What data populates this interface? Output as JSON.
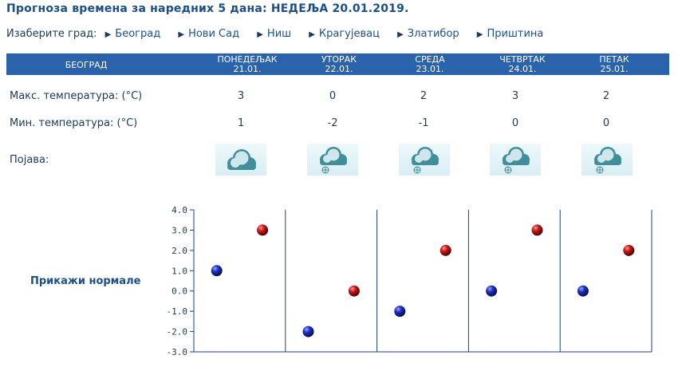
{
  "title": "Прогноза времена за наредних 5 дана: НЕДЕЉА  20.01.2019.",
  "city_select": {
    "label": "Изаберите град:",
    "cities": [
      "Београд",
      "Нови Сад",
      "Ниш",
      "Крагујевац",
      "Златибор",
      "Приштина"
    ]
  },
  "forecast": {
    "city": "БЕОГРАД",
    "days": [
      {
        "name": "ПОНЕДЕЉАК",
        "date": "21.01.",
        "max": "3",
        "min": "1",
        "icon": "cloud-icon"
      },
      {
        "name": "УТОРАК",
        "date": "22.01.",
        "max": "0",
        "min": "-2",
        "icon": "snow-cloud-icon"
      },
      {
        "name": "СРЕДА",
        "date": "23.01.",
        "max": "2",
        "min": "-1",
        "icon": "snow-cloud-icon"
      },
      {
        "name": "ЧЕТВРТАК",
        "date": "24.01.",
        "max": "3",
        "min": "0",
        "icon": "snow-cloud-icon"
      },
      {
        "name": "ПЕТАК",
        "date": "25.01.",
        "max": "2",
        "min": "0",
        "icon": "snow-cloud-icon"
      }
    ],
    "max_label": "Макс. температура: (°C)",
    "min_label": "Мин. температура: (°C)",
    "phenomenon_label": "Појава:"
  },
  "normals_link": "Прикажи нормале",
  "chart_data": {
    "type": "scatter",
    "ylim": [
      -3.0,
      4.0
    ],
    "yticks": [
      "4.0",
      "3.0",
      "2.0",
      "1.0",
      "0.0",
      "-1.0",
      "-2.0",
      "-3.0"
    ],
    "series": [
      {
        "values": [
          1,
          -2,
          -1,
          0,
          0
        ],
        "color": "#1a1aa8"
      },
      {
        "values": [
          3,
          0,
          2,
          3,
          2
        ],
        "color": "#b01010"
      }
    ],
    "colors": {
      "min": "#1a1aa8",
      "max": "#b01010",
      "axis": "#1a3f8c"
    }
  }
}
